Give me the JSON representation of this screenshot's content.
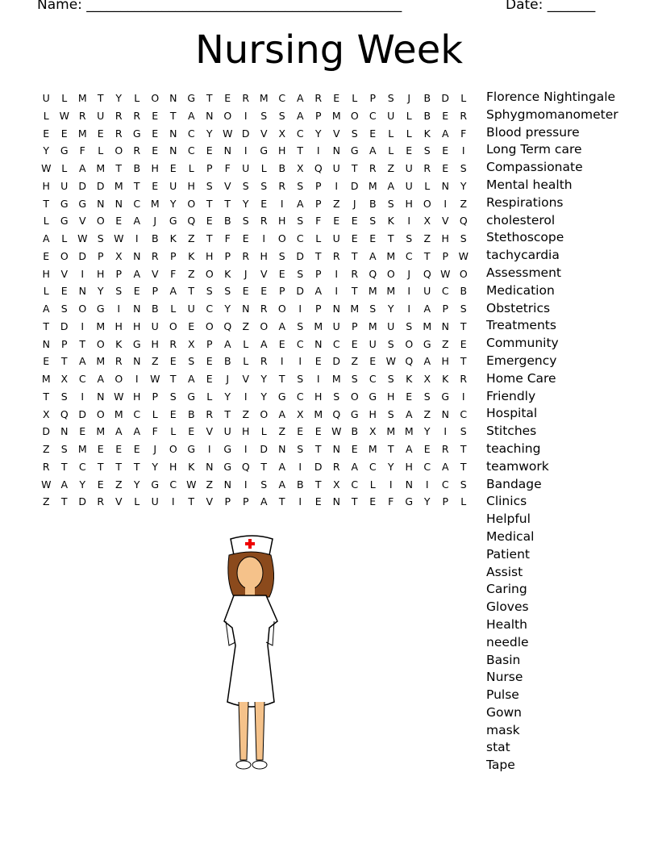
{
  "header": {
    "name_label": "Name: ______________________________________________",
    "date_label": "Date: _______"
  },
  "title": "Nursing Week",
  "grid": [
    "ULMTYLONGTERMCARELPSJBDL",
    "LWRURRETANOISSAPMOCULBER",
    "EEMERGENCYWDVXCYVSELLKAF",
    "YGFLORENCENIGHTINGALESEI",
    "WLAMTBHELPFULBXQUTRZURES",
    "HUDDMTEUHSVSSRSPIDMAULNY",
    "TGGNNCMYOTTYEIAPZJBSHOIZ",
    "LGVOEAJGQEBSRHSFEESKIXVQ",
    "ALWSWIBKZTFEIOCLUEETSZHS",
    "EODPXNRPKHPRHSDTRTAMCTPW",
    "HVIHPAVFZOKJVESPIRQOJQWO",
    "LENYSEPATSSEEPDAITMMIUCB",
    "ASOGINBLUCYNROIPNMSYIAPS",
    "TDIMHHUOEOQZOASMUPMUSMNT",
    "NPTOKGHRXPALAECNCEUSOGZE",
    "ETAMRNZESEBLRIIEDZEWQAHT",
    "MXCAOIWTAEJVYTSIMSCSKXKR",
    "TSINWHPSGLYIYGCHSOGHESGI",
    "XQDOMCLEBRTZOAXMQGHSAZNC",
    "DNEMAAFLEVUHLZEEWBXMMYIS",
    "ZSMEEEJOGIGIDNSTNEMTAERT",
    "RTCTTTYHKNGQTAIDRACYHCAT",
    "WAYEZYGCWZNISABTXCLINICS",
    "ZTDRVLUITVPPATIENTEFGYPL"
  ],
  "words": [
    "Florence Nightingale",
    "Sphygmomanometer",
    "Blood pressure",
    "Long Term care",
    "Compassionate",
    "Mental health",
    "Respirations",
    "cholesterol",
    "Stethoscope",
    "tachycardia",
    "Assessment",
    "Medication",
    "Obstetrics",
    "Treatments",
    "Community",
    "Emergency",
    "Home Care",
    "Friendly",
    "Hospital",
    "Stitches",
    "teaching",
    "teamwork",
    "Bandage",
    "Clinics",
    "Helpful",
    "Medical",
    "Patient",
    "Assist",
    "Caring",
    "Gloves",
    "Health",
    "needle",
    "Basin",
    "Nurse",
    "Pulse",
    "Gown",
    "mask",
    "stat",
    "Tape"
  ],
  "illustration": "nurse-clipart"
}
